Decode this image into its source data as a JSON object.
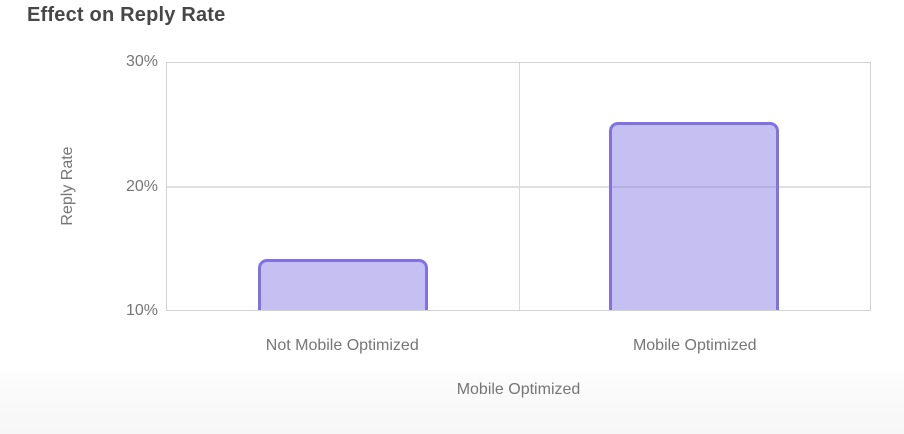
{
  "header": {
    "title": "Effect on Reply Rate"
  },
  "chart_data": {
    "type": "bar",
    "title": "Effect on Reply Rate",
    "categories": [
      "Not Mobile Optimized",
      "Mobile Optimized"
    ],
    "values": [
      14.1,
      25.2
    ],
    "xlabel": "Mobile Optimized",
    "ylabel": "Reply Rate",
    "ylim": [
      10,
      30
    ],
    "ytick_labels": [
      "30%",
      "20%",
      "10%"
    ],
    "ytick_values": [
      30,
      20,
      10
    ],
    "grid": true,
    "legend": false,
    "colors": {
      "bar_border": "#8172e3",
      "bar_fill": "rgba(129,114,227,0.45)",
      "grid_line": "#e0e0e0",
      "plot_border": "#d2d2d2",
      "axis_text": "#767676",
      "title_text": "#474747",
      "bottom_strip": "#fafafa"
    }
  }
}
